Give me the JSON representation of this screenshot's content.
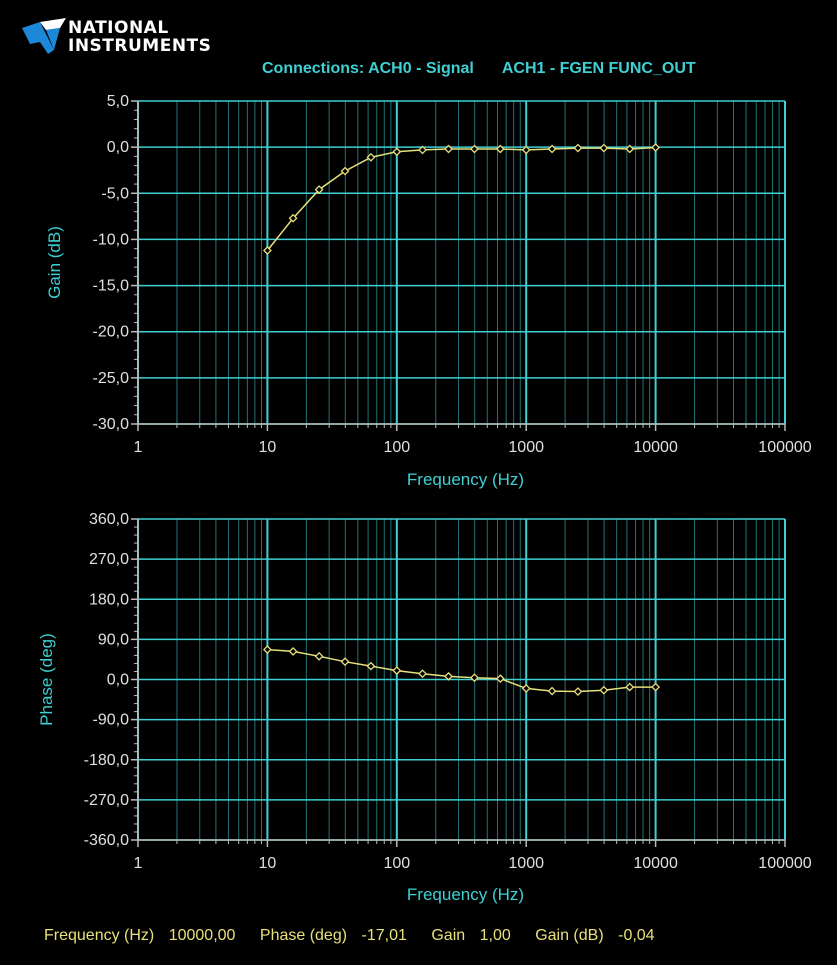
{
  "logo": {
    "line1": "NATIONAL",
    "line2": "INSTRUMENTS"
  },
  "connections": {
    "ch0": "Connections: ACH0 - Signal",
    "ch1": "ACH1 - FGEN FUNC_OUT"
  },
  "colors": {
    "background": "#000000",
    "text": "#3fd0d4",
    "grid": "#3fd0d4",
    "trace": "#e8e07a",
    "readout": "#e8e07a"
  },
  "readout": {
    "freq_label": "Frequency (Hz)",
    "freq_value": "10000,00",
    "phase_label": "Phase (deg)",
    "phase_value": "-17,01",
    "gain_label": "Gain",
    "gain_value": "1,00",
    "gaindb_label": "Gain (dB)",
    "gaindb_value": "-0,04"
  },
  "chart_data": [
    {
      "type": "line",
      "xscale": "log",
      "xlabel": "Frequency (Hz)",
      "ylabel": "Gain (dB)",
      "xlim": [
        1,
        100000
      ],
      "ylim": [
        -30,
        5
      ],
      "xticks": [
        "1",
        "10",
        "100",
        "1000",
        "10000",
        "100000"
      ],
      "yticks": [
        "5,0",
        "0,0",
        "-5,0",
        "-10,0",
        "-15,0",
        "-20,0",
        "-25,0",
        "-30,0"
      ],
      "ytick_values": [
        5,
        0,
        -5,
        -10,
        -15,
        -20,
        -25,
        -30
      ],
      "grid": true,
      "series": [
        {
          "x": [
            10,
            15.8,
            25.1,
            39.8,
            63.1,
            100,
            158,
            251,
            398,
            631,
            1000,
            1585,
            2512,
            3981,
            6310,
            10000
          ],
          "y": [
            -11.2,
            -7.7,
            -4.6,
            -2.6,
            -1.1,
            -0.5,
            -0.3,
            -0.2,
            -0.2,
            -0.2,
            -0.3,
            -0.2,
            -0.1,
            -0.1,
            -0.2,
            -0.04
          ]
        }
      ]
    },
    {
      "type": "line",
      "xscale": "log",
      "xlabel": "Frequency (Hz)",
      "ylabel": "Phase (deg)",
      "xlim": [
        1,
        100000
      ],
      "ylim": [
        -360,
        360
      ],
      "xticks": [
        "1",
        "10",
        "100",
        "1000",
        "10000",
        "100000"
      ],
      "yticks": [
        "360,0",
        "270,0",
        "180,0",
        "90,0",
        "0,0",
        "-90,0",
        "-180,0",
        "-270,0",
        "-360,0"
      ],
      "ytick_values": [
        360,
        270,
        180,
        90,
        0,
        -90,
        -180,
        -270,
        -360
      ],
      "grid": true,
      "series": [
        {
          "x": [
            10,
            15.8,
            25.1,
            39.8,
            63.1,
            100,
            158,
            251,
            398,
            631,
            1000,
            1585,
            2512,
            3981,
            6310,
            10000
          ],
          "y": [
            67,
            63,
            52,
            40,
            30,
            20,
            13,
            7,
            4,
            2,
            -20,
            -26,
            -27,
            -24,
            -17,
            -17
          ]
        }
      ]
    }
  ]
}
